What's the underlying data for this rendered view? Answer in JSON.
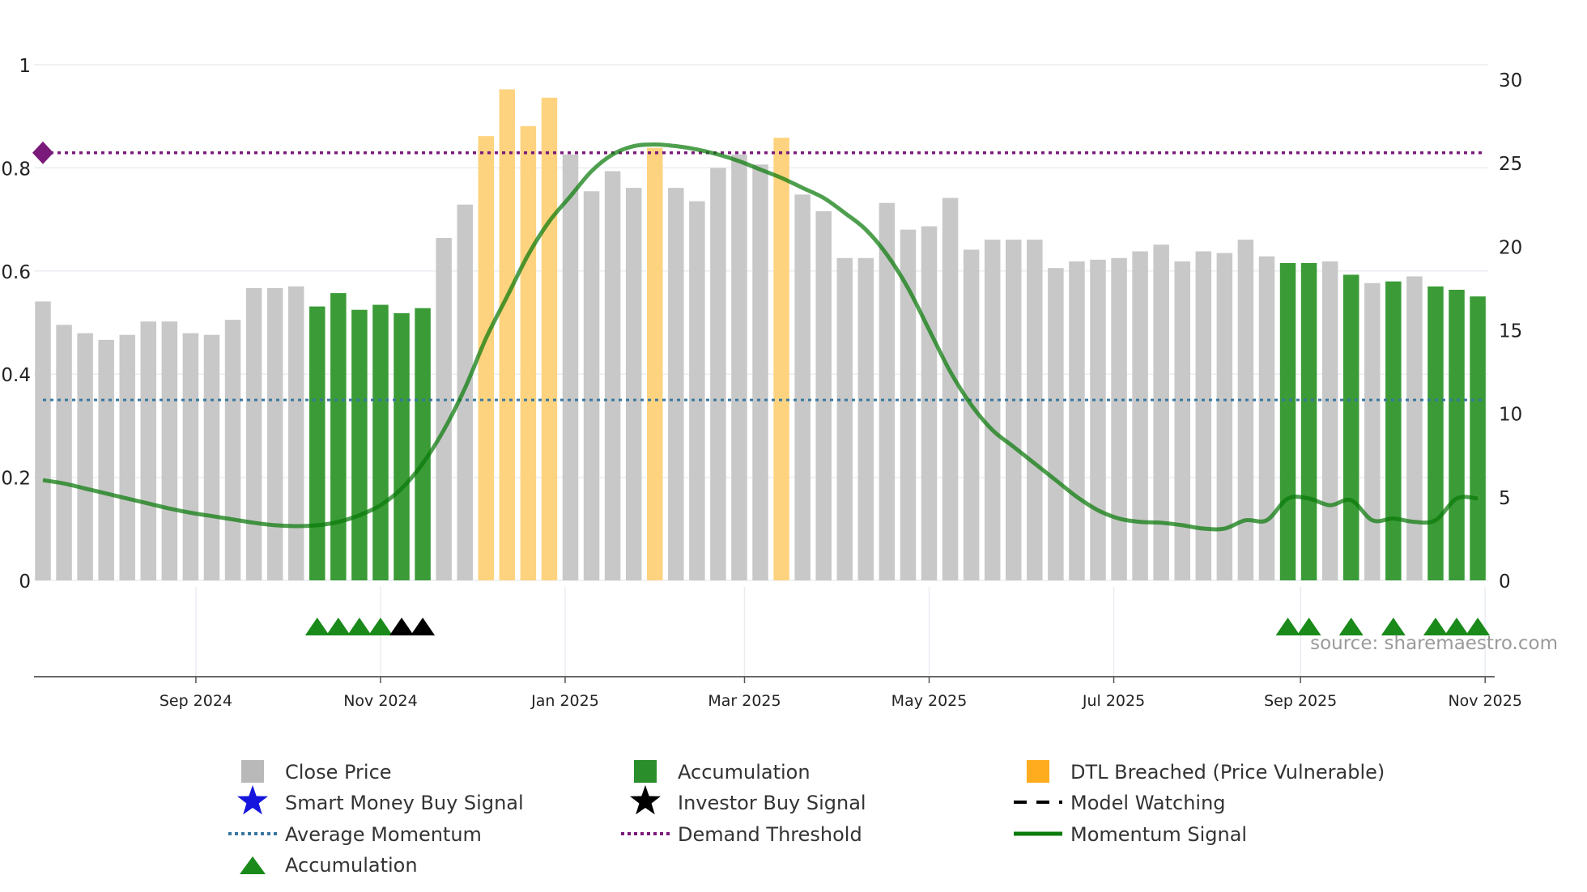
{
  "chart_data": {
    "type": "bar",
    "title": "",
    "source": "source: sharemaestro.com",
    "left_axis": {
      "range": [
        0,
        1
      ],
      "ticks": [
        0,
        0.2,
        0.4,
        0.6,
        0.8,
        1
      ],
      "tick_labels": [
        "0",
        "0.2",
        "0.4",
        "0.6",
        "0.8",
        "1"
      ]
    },
    "right_axis": {
      "range": [
        0,
        30
      ],
      "ticks": [
        0,
        5,
        10,
        15,
        20,
        25,
        30
      ],
      "tick_labels": [
        "0",
        "5",
        "10",
        "15",
        "20",
        "25",
        "30"
      ]
    },
    "x_axis": {
      "labels": [
        "Sep 2024",
        "Nov 2024",
        "Jan 2025",
        "Mar 2025",
        "May 2025",
        "Jul 2025",
        "Sep 2025",
        "Nov 2025"
      ],
      "label_week_index": [
        7.25,
        16,
        24.75,
        33.25,
        42,
        50.75,
        59.6,
        68.35
      ]
    },
    "weeks": 69,
    "close_price": [
      16.7,
      15.3,
      14.8,
      14.4,
      14.7,
      15.5,
      15.5,
      14.8,
      14.7,
      15.6,
      17.5,
      17.5,
      17.6,
      16.4,
      17.2,
      16.2,
      16.5,
      16.0,
      16.3,
      20.5,
      22.5,
      26.6,
      29.4,
      27.2,
      28.9,
      25.5,
      23.3,
      24.5,
      23.5,
      25.9,
      23.5,
      22.7,
      24.7,
      25.5,
      24.9,
      26.5,
      23.1,
      22.1,
      19.3,
      19.3,
      22.6,
      21.0,
      21.2,
      22.9,
      19.8,
      20.4,
      20.4,
      20.4,
      18.7,
      19.1,
      19.2,
      19.3,
      19.7,
      20.1,
      19.1,
      19.7,
      19.6,
      20.4,
      19.4,
      19.0,
      19.0,
      19.1,
      18.3,
      17.8,
      17.9,
      18.2,
      17.6,
      17.4,
      17.0
    ],
    "bar_category": [
      "close",
      "close",
      "close",
      "close",
      "close",
      "close",
      "close",
      "close",
      "close",
      "close",
      "close",
      "close",
      "close",
      "accumulation",
      "accumulation",
      "accumulation",
      "accumulation",
      "accumulation",
      "accumulation",
      "close",
      "close",
      "dtl",
      "dtl",
      "dtl",
      "dtl",
      "close",
      "close",
      "close",
      "close",
      "dtl",
      "close",
      "close",
      "close",
      "close",
      "close",
      "dtl",
      "close",
      "close",
      "close",
      "close",
      "close",
      "close",
      "close",
      "close",
      "close",
      "close",
      "close",
      "close",
      "close",
      "close",
      "close",
      "close",
      "close",
      "close",
      "close",
      "close",
      "close",
      "close",
      "close",
      "accumulation",
      "accumulation",
      "close",
      "accumulation",
      "close",
      "accumulation",
      "close",
      "accumulation",
      "accumulation",
      "accumulation"
    ],
    "momentum_signal": [
      6.0,
      5.8,
      5.5,
      5.2,
      4.9,
      4.6,
      4.3,
      4.05,
      3.85,
      3.65,
      3.45,
      3.3,
      3.25,
      3.3,
      3.5,
      3.9,
      4.5,
      5.5,
      7.0,
      9.0,
      11.5,
      14.5,
      17.0,
      19.5,
      21.5,
      23.0,
      24.5,
      25.5,
      26.0,
      26.1,
      26.0,
      25.8,
      25.5,
      25.1,
      24.6,
      24.1,
      23.5,
      22.9,
      22.0,
      21.0,
      19.5,
      17.5,
      15.0,
      12.5,
      10.5,
      9.0,
      8.0,
      7.0,
      6.0,
      5.0,
      4.2,
      3.7,
      3.5,
      3.45,
      3.3,
      3.1,
      3.1,
      3.6,
      3.6,
      4.9,
      4.9,
      4.5,
      4.8,
      3.6,
      3.7,
      3.5,
      3.6,
      4.9,
      4.9
    ],
    "average_momentum": 10.8,
    "demand_threshold": 25.6,
    "accumulation_markers": [
      13,
      14,
      15,
      16,
      59,
      60,
      62,
      64,
      66,
      67,
      68
    ],
    "investor_buy_markers": [
      17,
      18
    ],
    "legend": {
      "close_price": "Close Price",
      "accumulation_bar": "Accumulation",
      "dtl": "DTL Breached (Price Vulnerable)",
      "smart_money": "Smart Money Buy Signal",
      "investor_buy": "Investor Buy Signal",
      "model_watching": "Model Watching",
      "average_momentum": "Average Momentum",
      "demand_threshold": "Demand Threshold",
      "momentum_signal": "Momentum Signal",
      "accumulation_marker": "Accumulation"
    },
    "colors": {
      "close": "#c8c8c8",
      "accumulation": "#3a9b37",
      "dtl": "#fed37f",
      "momentum": "#0a7a0a",
      "average_momentum": "#3a77a0",
      "demand_threshold": "#7a1a7a",
      "accumulation_marker": "#1a8a1a",
      "investor_marker": "#000000",
      "smart_money_marker": "#1515dd",
      "grid": "#e9edf2",
      "axis": "#555555"
    }
  }
}
